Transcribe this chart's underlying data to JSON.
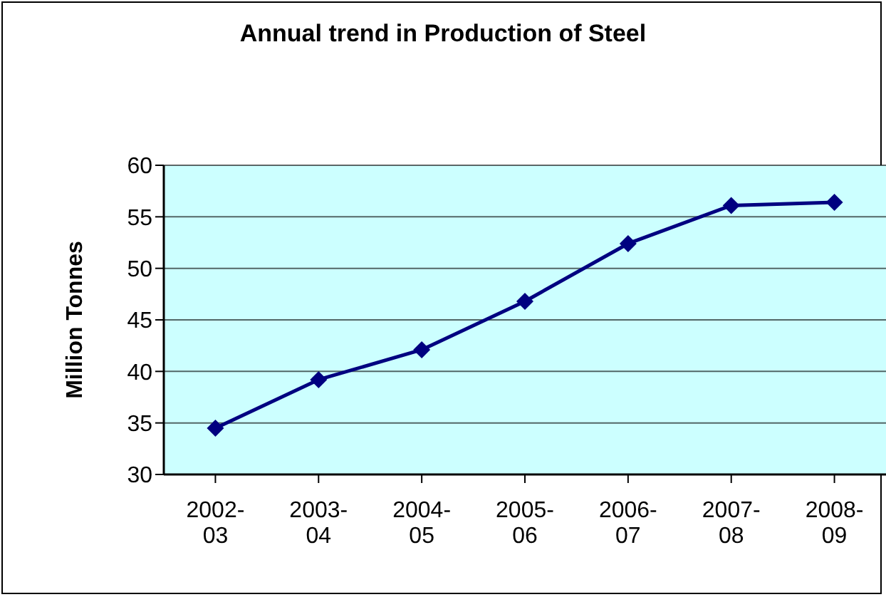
{
  "chart_data": {
    "type": "line",
    "title": "Annual trend in Production of Steel",
    "ylabel": "Million Tonnes",
    "categories": [
      "2002-03",
      "2003-04",
      "2004-05",
      "2005-06",
      "2006-07",
      "2007-08",
      "2008-09"
    ],
    "series": [
      {
        "color": "#000080",
        "values": [
          34.5,
          39.2,
          42.1,
          46.8,
          52.4,
          56.1,
          56.4
        ]
      }
    ],
    "ylim": [
      30,
      60
    ],
    "yticks": [
      30,
      35,
      40,
      45,
      50,
      55,
      60
    ],
    "grid": "y",
    "marker": "diamond",
    "line_style": "solid",
    "legend": false
  }
}
